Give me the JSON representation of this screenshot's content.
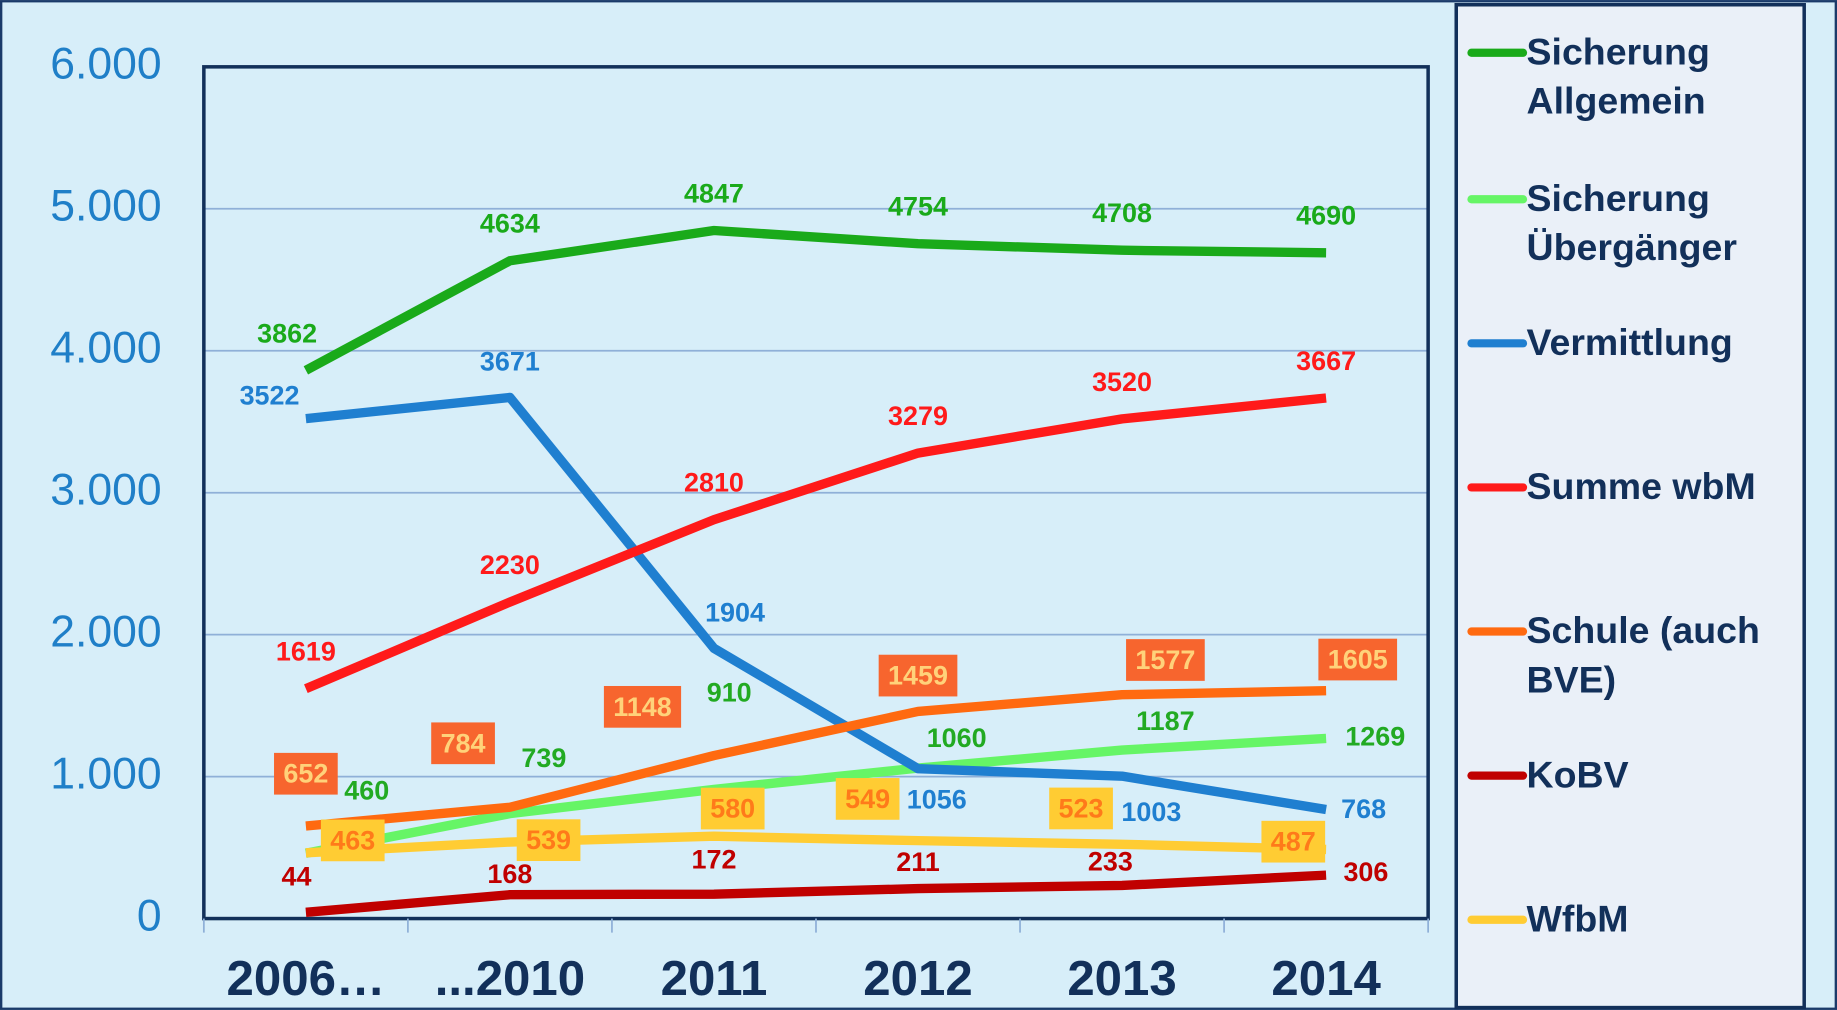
{
  "chart_data": {
    "type": "line",
    "categories": [
      "2006…",
      "...2010",
      "2011",
      "2012",
      "2013",
      "2014"
    ],
    "series": [
      {
        "name": "Sicherung Allgemein",
        "color": "#1aaa1a",
        "values": [
          3862,
          4634,
          4847,
          4754,
          4708,
          4690
        ]
      },
      {
        "name": "Sicherung Übergänger",
        "color": "#66f566",
        "values": [
          460,
          739,
          910,
          1060,
          1187,
          1269
        ]
      },
      {
        "name": "Vermittlung",
        "color": "#1f7fd0",
        "values": [
          3522,
          3671,
          1904,
          1056,
          1003,
          768
        ]
      },
      {
        "name": "Summe wbM",
        "color": "#ff1a1a",
        "values": [
          1619,
          2230,
          2810,
          3279,
          3520,
          3667
        ]
      },
      {
        "name": "Schule (auch BVE)",
        "color": "#ff6a10",
        "values": [
          652,
          784,
          1148,
          1459,
          1577,
          1605
        ]
      },
      {
        "name": "KoBV",
        "color": "#c00000",
        "values": [
          44,
          168,
          172,
          211,
          233,
          306
        ]
      },
      {
        "name": "WfbM",
        "color": "#ffcc33",
        "values": [
          463,
          539,
          580,
          549,
          523,
          487
        ]
      }
    ],
    "ylim": [
      0,
      6000
    ],
    "yticks": [
      0,
      {
        "value": 1000,
        "label": "1.000"
      },
      {
        "value": 2000,
        "label": "2.000"
      },
      {
        "value": 3000,
        "label": "3.000"
      },
      {
        "value": 4000,
        "label": "4.000"
      },
      {
        "value": 5000,
        "label": "5.000"
      },
      {
        "value": 6000,
        "label": "6.000"
      }
    ],
    "grid": true,
    "legend": "right"
  }
}
